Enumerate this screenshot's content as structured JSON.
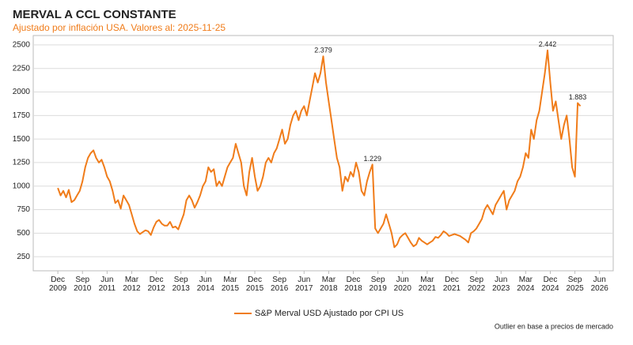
{
  "chart_data": {
    "type": "line",
    "title": "MERVAL A CCL CONSTANTE",
    "subtitle": "Ajustado por inflación USA. Valores al: 2025-11-25",
    "footnote": "Outlier en base a precios de mercado",
    "legend_position": "bottom",
    "grid": true,
    "xlim": [
      "2009-03",
      "2026-11"
    ],
    "ylim": [
      100,
      2600
    ],
    "yticks": [
      250,
      500,
      750,
      1000,
      1250,
      1500,
      1750,
      2000,
      2250,
      2500
    ],
    "xticks": [
      {
        "value": "2009-12",
        "label": "Dec 2009"
      },
      {
        "value": "2010-09",
        "label": "Sep 2010"
      },
      {
        "value": "2011-06",
        "label": "Jun 2011"
      },
      {
        "value": "2012-03",
        "label": "Mar 2012"
      },
      {
        "value": "2012-12",
        "label": "Dec 2012"
      },
      {
        "value": "2013-09",
        "label": "Sep 2013"
      },
      {
        "value": "2014-06",
        "label": "Jun 2014"
      },
      {
        "value": "2015-03",
        "label": "Mar 2015"
      },
      {
        "value": "2015-12",
        "label": "Dec 2015"
      },
      {
        "value": "2016-09",
        "label": "Sep 2016"
      },
      {
        "value": "2017-06",
        "label": "Jun 2017"
      },
      {
        "value": "2018-03",
        "label": "Mar 2018"
      },
      {
        "value": "2018-12",
        "label": "Dec 2018"
      },
      {
        "value": "2019-09",
        "label": "Sep 2019"
      },
      {
        "value": "2020-06",
        "label": "Jun 2020"
      },
      {
        "value": "2021-03",
        "label": "Mar 2021"
      },
      {
        "value": "2021-12",
        "label": "Dec 2021"
      },
      {
        "value": "2022-09",
        "label": "Sep 2022"
      },
      {
        "value": "2023-06",
        "label": "Jun 2023"
      },
      {
        "value": "2024-03",
        "label": "Mar 2024"
      },
      {
        "value": "2024-12",
        "label": "Dec 2024"
      },
      {
        "value": "2025-09",
        "label": "Sep 2025"
      },
      {
        "value": "2026-06",
        "label": "Jun 2026"
      }
    ],
    "x": [
      "2009-12",
      "2010-01",
      "2010-02",
      "2010-03",
      "2010-04",
      "2010-05",
      "2010-06",
      "2010-07",
      "2010-08",
      "2010-09",
      "2010-10",
      "2010-11",
      "2010-12",
      "2011-01",
      "2011-02",
      "2011-03",
      "2011-04",
      "2011-05",
      "2011-06",
      "2011-07",
      "2011-08",
      "2011-09",
      "2011-10",
      "2011-11",
      "2011-12",
      "2012-01",
      "2012-02",
      "2012-03",
      "2012-04",
      "2012-05",
      "2012-06",
      "2012-07",
      "2012-08",
      "2012-09",
      "2012-10",
      "2012-11",
      "2012-12",
      "2013-01",
      "2013-02",
      "2013-03",
      "2013-04",
      "2013-05",
      "2013-06",
      "2013-07",
      "2013-08",
      "2013-09",
      "2013-10",
      "2013-11",
      "2013-12",
      "2014-01",
      "2014-02",
      "2014-03",
      "2014-04",
      "2014-05",
      "2014-06",
      "2014-07",
      "2014-08",
      "2014-09",
      "2014-10",
      "2014-11",
      "2014-12",
      "2015-01",
      "2015-02",
      "2015-03",
      "2015-04",
      "2015-05",
      "2015-06",
      "2015-07",
      "2015-08",
      "2015-09",
      "2015-10",
      "2015-11",
      "2015-12",
      "2016-01",
      "2016-02",
      "2016-03",
      "2016-04",
      "2016-05",
      "2016-06",
      "2016-07",
      "2016-08",
      "2016-09",
      "2016-10",
      "2016-11",
      "2016-12",
      "2017-01",
      "2017-02",
      "2017-03",
      "2017-04",
      "2017-05",
      "2017-06",
      "2017-07",
      "2017-08",
      "2017-09",
      "2017-10",
      "2017-11",
      "2017-12",
      "2018-01",
      "2018-02",
      "2018-03",
      "2018-04",
      "2018-05",
      "2018-06",
      "2018-07",
      "2018-08",
      "2018-09",
      "2018-10",
      "2018-11",
      "2018-12",
      "2019-01",
      "2019-02",
      "2019-03",
      "2019-04",
      "2019-05",
      "2019-06",
      "2019-07",
      "2019-08",
      "2019-09",
      "2019-10",
      "2019-11",
      "2019-12",
      "2020-01",
      "2020-02",
      "2020-03",
      "2020-04",
      "2020-05",
      "2020-06",
      "2020-07",
      "2020-08",
      "2020-09",
      "2020-10",
      "2020-11",
      "2020-12",
      "2021-01",
      "2021-02",
      "2021-03",
      "2021-04",
      "2021-05",
      "2021-06",
      "2021-07",
      "2021-08",
      "2021-09",
      "2021-10",
      "2021-11",
      "2021-12",
      "2022-01",
      "2022-02",
      "2022-03",
      "2022-04",
      "2022-05",
      "2022-06",
      "2022-07",
      "2022-08",
      "2022-09",
      "2022-10",
      "2022-11",
      "2022-12",
      "2023-01",
      "2023-02",
      "2023-03",
      "2023-04",
      "2023-05",
      "2023-06",
      "2023-07",
      "2023-08",
      "2023-09",
      "2023-10",
      "2023-11",
      "2023-12",
      "2024-01",
      "2024-02",
      "2024-03",
      "2024-04",
      "2024-05",
      "2024-06",
      "2024-07",
      "2024-08",
      "2024-09",
      "2024-10",
      "2024-11",
      "2024-12",
      "2025-01",
      "2025-02",
      "2025-03",
      "2025-04",
      "2025-05",
      "2025-06",
      "2025-07",
      "2025-08",
      "2025-09",
      "2025-10",
      "2025-11"
    ],
    "series": [
      {
        "name": "S&P Merval USD Ajustado por CPI US",
        "color": "#f07c1a",
        "values": [
          980,
          900,
          950,
          880,
          960,
          830,
          850,
          900,
          950,
          1050,
          1200,
          1300,
          1350,
          1380,
          1300,
          1250,
          1280,
          1200,
          1100,
          1050,
          950,
          820,
          850,
          760,
          900,
          850,
          800,
          700,
          600,
          520,
          490,
          510,
          530,
          520,
          480,
          560,
          620,
          640,
          600,
          580,
          580,
          620,
          560,
          570,
          540,
          620,
          700,
          850,
          900,
          850,
          770,
          830,
          900,
          1000,
          1050,
          1200,
          1150,
          1180,
          1000,
          1050,
          1000,
          1100,
          1200,
          1250,
          1300,
          1450,
          1350,
          1250,
          1000,
          900,
          1150,
          1300,
          1100,
          950,
          1000,
          1100,
          1250,
          1300,
          1250,
          1350,
          1400,
          1500,
          1600,
          1450,
          1500,
          1650,
          1750,
          1800,
          1700,
          1800,
          1850,
          1750,
          1900,
          2050,
          2200,
          2100,
          2200,
          2379,
          2100,
          1900,
          1700,
          1500,
          1300,
          1200,
          950,
          1100,
          1050,
          1150,
          1100,
          1250,
          1150,
          950,
          900,
          1050,
          1150,
          1229,
          550,
          500,
          550,
          600,
          700,
          600,
          500,
          350,
          380,
          450,
          480,
          500,
          450,
          400,
          360,
          380,
          450,
          420,
          400,
          380,
          400,
          420,
          460,
          450,
          480,
          520,
          500,
          470,
          480,
          490,
          480,
          470,
          450,
          430,
          400,
          500,
          520,
          550,
          600,
          650,
          750,
          800,
          750,
          700,
          800,
          850,
          900,
          950,
          750,
          850,
          900,
          950,
          1050,
          1100,
          1200,
          1350,
          1300,
          1600,
          1500,
          1700,
          1800,
          2000,
          2200,
          2442,
          2100,
          1800,
          1900,
          1700,
          1500,
          1650,
          1750,
          1500,
          1200,
          1100,
          1883,
          1850
        ]
      }
    ],
    "annotations": [
      {
        "x": "2018-01",
        "value": 2379,
        "label": "2.379"
      },
      {
        "x": "2019-07",
        "value": 1229,
        "label": "1.229"
      },
      {
        "x": "2024-11",
        "value": 2442,
        "label": "2.442"
      },
      {
        "x": "2025-10",
        "value": 1883,
        "label": "1.883"
      }
    ]
  }
}
